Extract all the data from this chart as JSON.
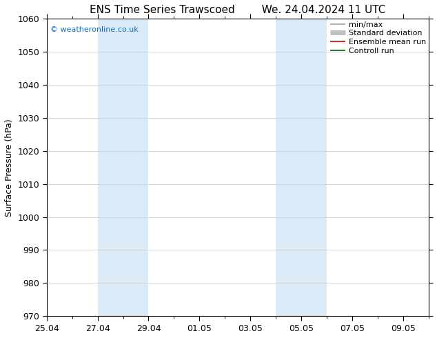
{
  "title_left": "ENS Time Series Trawscoed",
  "title_right": "We. 24.04.2024 11 UTC",
  "ylabel": "Surface Pressure (hPa)",
  "ylim": [
    970,
    1060
  ],
  "yticks": [
    970,
    980,
    990,
    1000,
    1010,
    1020,
    1030,
    1040,
    1050,
    1060
  ],
  "total_days": 15,
  "xtick_labels": [
    "25.04",
    "27.04",
    "29.04",
    "01.05",
    "03.05",
    "05.05",
    "07.05",
    "09.05"
  ],
  "xtick_positions": [
    0,
    2,
    4,
    6,
    8,
    10,
    12,
    14
  ],
  "shaded_regions": [
    {
      "start": 2,
      "end": 4,
      "color": "#daeaf7"
    },
    {
      "start": 9,
      "end": 10,
      "color": "#daeaf7"
    },
    {
      "start": 10,
      "end": 11,
      "color": "#daeaf7"
    }
  ],
  "watermark": "© weatheronline.co.uk",
  "watermark_color": "#1a6bb5",
  "legend_items": [
    {
      "label": "min/max",
      "color": "#a0a0a0",
      "lw": 1.2
    },
    {
      "label": "Standard deviation",
      "color": "#c0c0c0",
      "lw": 5
    },
    {
      "label": "Ensemble mean run",
      "color": "#cc0000",
      "lw": 1.2
    },
    {
      "label": "Controll run",
      "color": "#006600",
      "lw": 1.2
    }
  ],
  "background_color": "#ffffff",
  "grid_color": "#cccccc",
  "title_fontsize": 11,
  "axis_fontsize": 9,
  "legend_fontsize": 8
}
